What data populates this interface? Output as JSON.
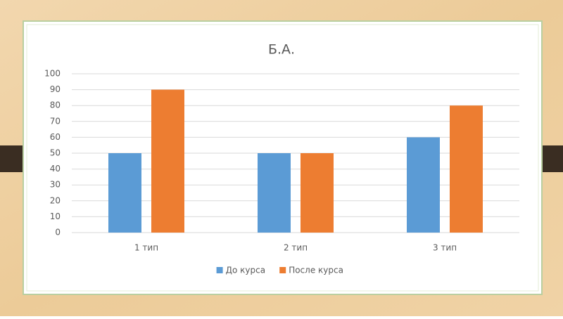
{
  "chart_data": {
    "type": "bar",
    "title": "Б.А.",
    "categories": [
      "1 тип",
      "2 тип",
      "3 тип"
    ],
    "series": [
      {
        "name": "До курса",
        "color": "#5b9bd5",
        "values": [
          50,
          50,
          60
        ]
      },
      {
        "name": "После курса",
        "color": "#ed7d31",
        "values": [
          90,
          50,
          80
        ]
      }
    ],
    "ylim": [
      0,
      100
    ],
    "yticks": [
      0,
      10,
      20,
      30,
      40,
      50,
      60,
      70,
      80,
      90,
      100
    ],
    "grid": true,
    "legend": "bottom"
  }
}
